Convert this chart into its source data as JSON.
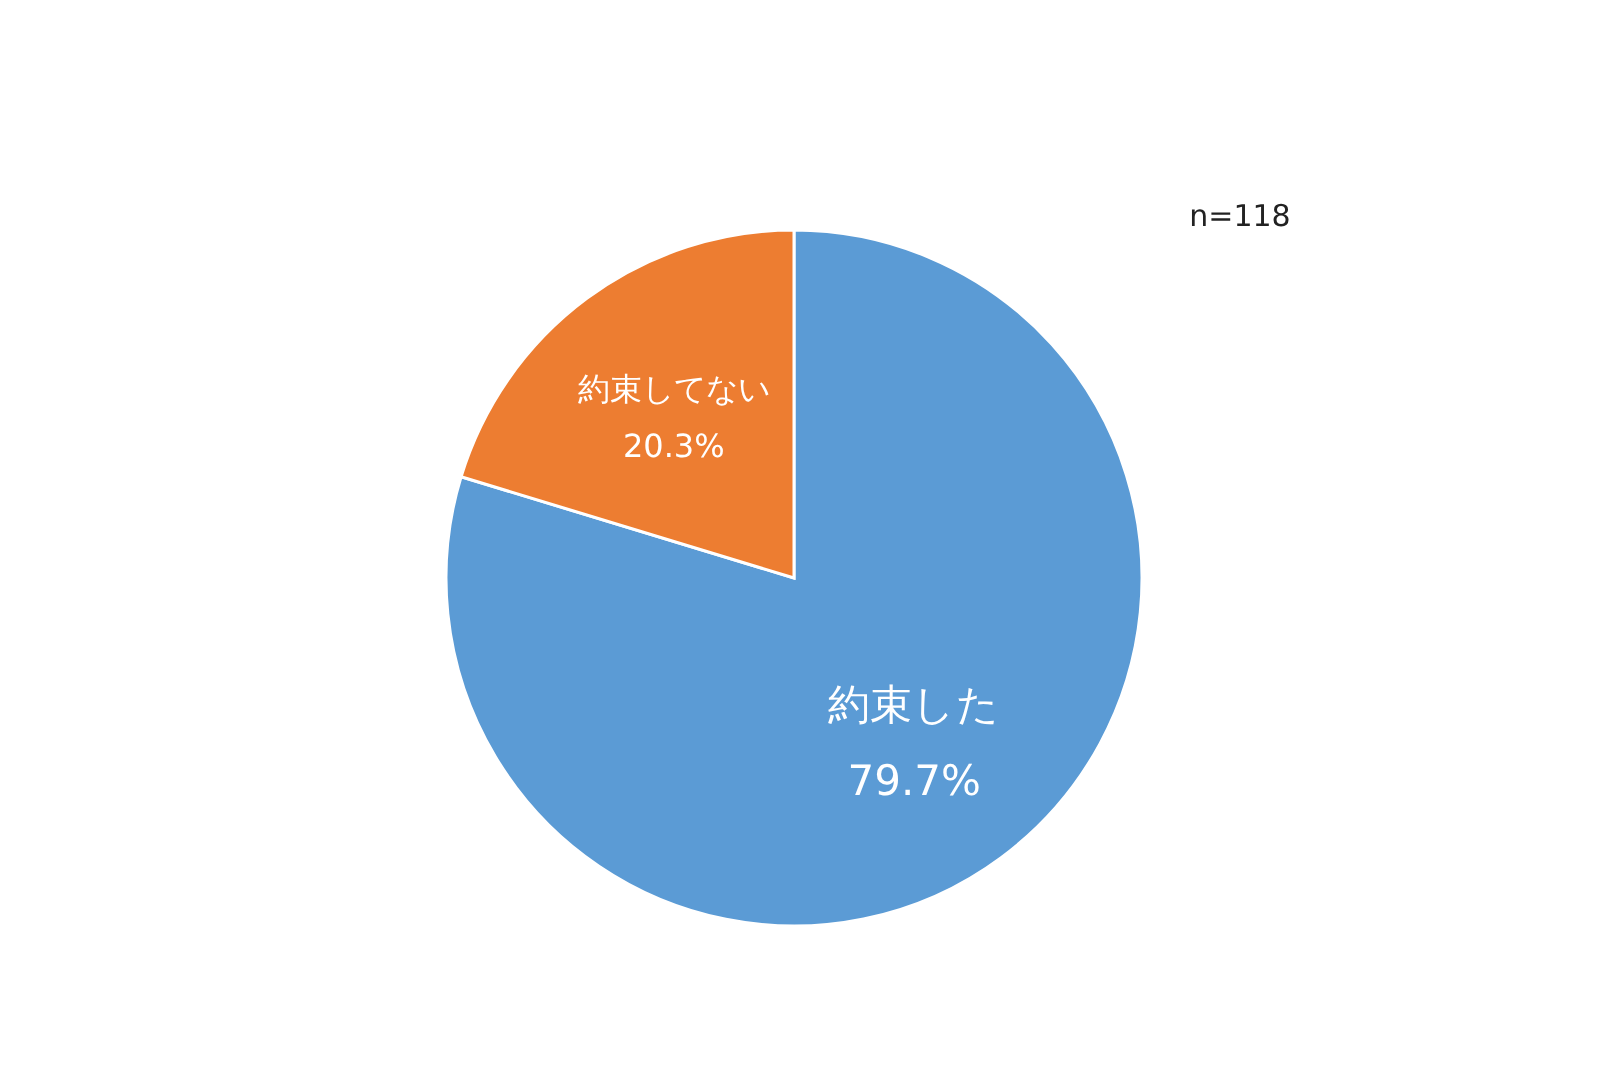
{
  "chart_data": {
    "type": "pie",
    "categories": [
      "約束した",
      "約束してない"
    ],
    "values": [
      79.7,
      20.3
    ],
    "value_labels": [
      "79.7%",
      "20.3%"
    ],
    "colors": [
      "#5b9bd5",
      "#ed7d31"
    ],
    "annotations": [
      "n=118"
    ]
  }
}
